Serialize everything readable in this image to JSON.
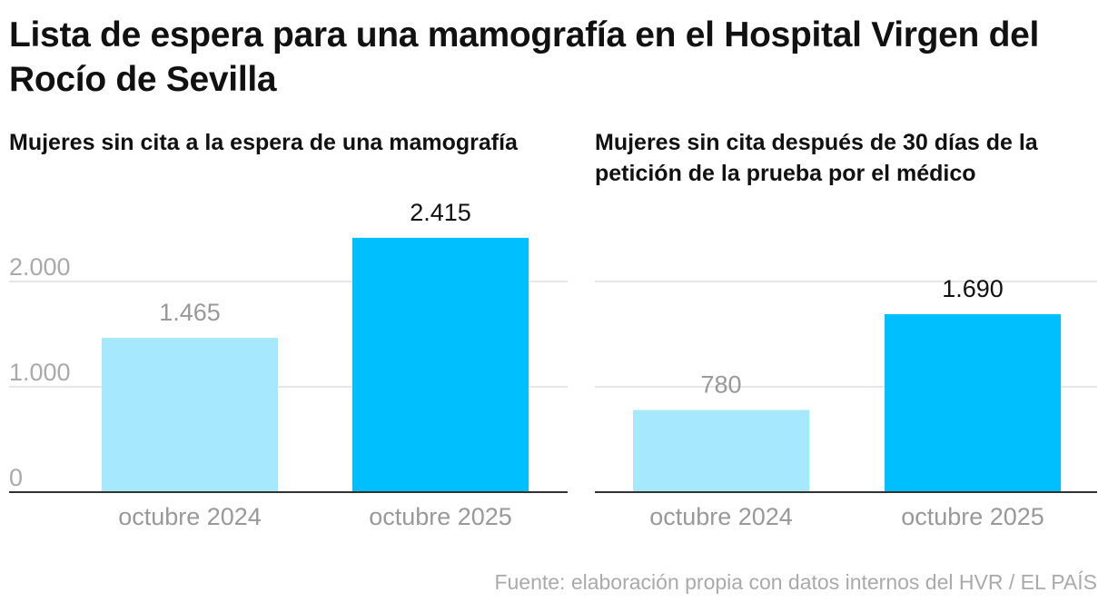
{
  "title": "Lista de espera para una mamografía en el Hospital Virgen del Rocío de Sevilla",
  "source": "Fuente: elaboración propia con datos internos del HVR / EL PAÍS",
  "colors": {
    "previous": "#a6e8fd",
    "current": "#00bfff",
    "axis": "#333333",
    "grid": "#dddddd",
    "label_muted": "#999999",
    "label_dark": "#111111"
  },
  "chart_data": [
    {
      "type": "bar",
      "title": "Mujeres sin cita a la espera de una mamografía",
      "categories": [
        "octubre 2024",
        "octubre 2025"
      ],
      "values": [
        1465,
        2415
      ],
      "value_labels": [
        "1.465",
        "2.415"
      ],
      "yticks": [
        0,
        1000,
        2000
      ],
      "ytick_labels": [
        "0",
        "1.000",
        "2.000"
      ],
      "ylim": [
        0,
        2000
      ],
      "grid": true,
      "xlabel": "",
      "ylabel": ""
    },
    {
      "type": "bar",
      "title": "Mujeres sin cita después de 30 días de la petición de la prueba por el médico",
      "categories": [
        "octubre 2024",
        "octubre 2025"
      ],
      "values": [
        780,
        1690
      ],
      "value_labels": [
        "780",
        "1.690"
      ],
      "yticks": [
        0,
        1000,
        2000
      ],
      "ylim": [
        0,
        2000
      ],
      "grid": true,
      "xlabel": "",
      "ylabel": ""
    }
  ]
}
